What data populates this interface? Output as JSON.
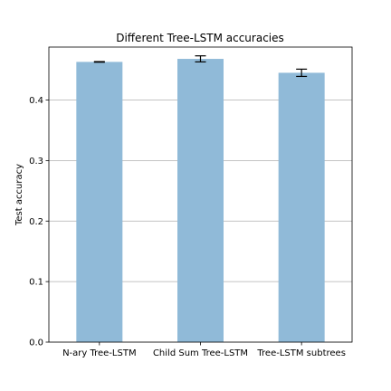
{
  "chart_data": {
    "type": "bar",
    "title": "Different Tree-LSTM accuracies",
    "xlabel": "",
    "ylabel": "Test accuracy",
    "categories": [
      "N-ary Tree-LSTM",
      "Child Sum Tree-LSTM",
      "Tree-LSTM subtrees"
    ],
    "values": [
      0.463,
      0.468,
      0.445
    ],
    "errors": [
      0.0005,
      0.005,
      0.006
    ],
    "ylim": [
      0,
      0.4875
    ],
    "yticks": [
      "0.0",
      "0.1",
      "0.2",
      "0.3",
      "0.4"
    ],
    "grid": "horizontal",
    "bar_color": "#90bad8",
    "error_color": "#000000"
  }
}
